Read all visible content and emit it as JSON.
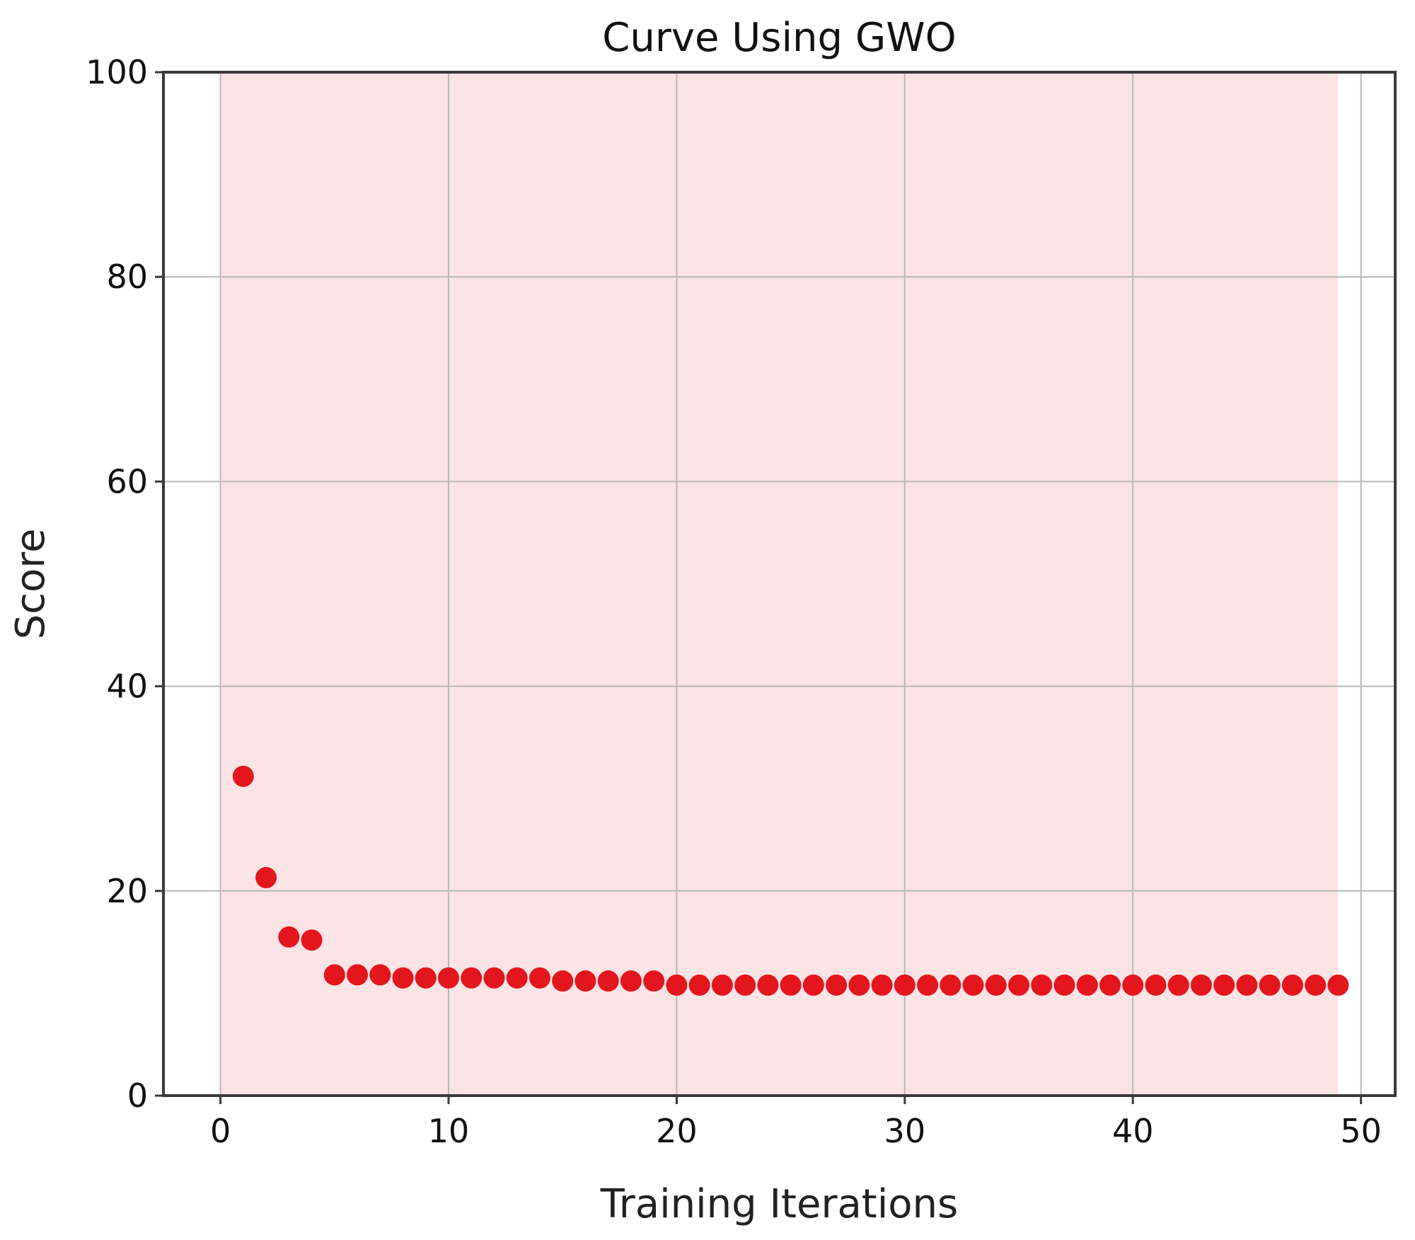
{
  "chart_data": {
    "type": "scatter",
    "title": "Curve Using GWO",
    "xlabel": "Training Iterations",
    "ylabel": "Score",
    "xlim": [
      -2.5,
      51.5
    ],
    "ylim": [
      0,
      100
    ],
    "xticks": [
      0,
      10,
      20,
      30,
      40,
      50
    ],
    "yticks": [
      0,
      20,
      40,
      60,
      80,
      100
    ],
    "shaded_region_x": [
      0,
      49
    ],
    "grid": true,
    "colors": {
      "marker": "#e3161d",
      "shade": "#fce3e5",
      "grid": "#b8b8b8",
      "axes": "#3a3a3a"
    },
    "series": [
      {
        "x": [
          1,
          2,
          3,
          4,
          5,
          6,
          7,
          8,
          9,
          10,
          11,
          12,
          13,
          14,
          15,
          16,
          17,
          18,
          19,
          20,
          21,
          22,
          23,
          24,
          25,
          26,
          27,
          28,
          29,
          30,
          31,
          32,
          33,
          34,
          35,
          36,
          37,
          38,
          39,
          40,
          41,
          42,
          43,
          44,
          45,
          46,
          47,
          48,
          49
        ],
        "y": [
          31.2,
          21.3,
          15.5,
          15.2,
          11.8,
          11.8,
          11.8,
          11.5,
          11.5,
          11.5,
          11.5,
          11.5,
          11.5,
          11.5,
          11.2,
          11.2,
          11.2,
          11.2,
          11.2,
          10.8,
          10.8,
          10.8,
          10.8,
          10.8,
          10.8,
          10.8,
          10.8,
          10.8,
          10.8,
          10.8,
          10.8,
          10.8,
          10.8,
          10.8,
          10.8,
          10.8,
          10.8,
          10.8,
          10.8,
          10.8,
          10.8,
          10.8,
          10.8,
          10.8,
          10.8,
          10.8,
          10.8,
          10.8,
          10.8
        ]
      }
    ]
  }
}
